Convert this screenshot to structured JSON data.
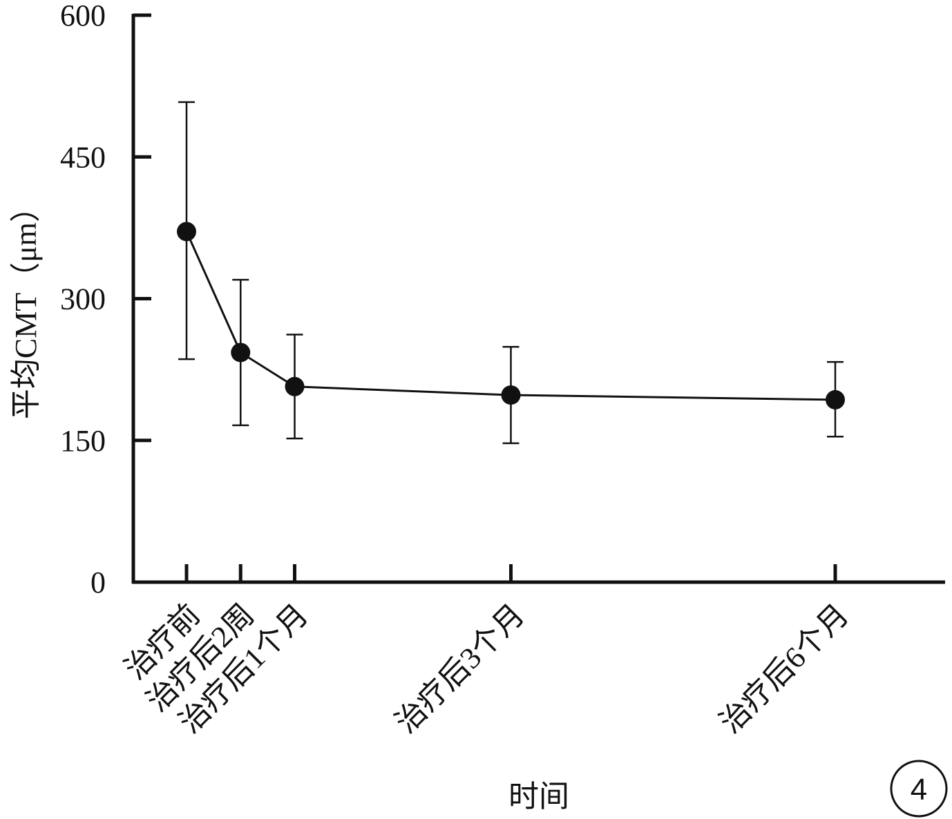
{
  "chart_data": {
    "type": "line",
    "title": "",
    "xlabel": "时间",
    "ylabel": "平均CMT（μm）",
    "ylim": [
      0,
      600
    ],
    "yticks": [
      0,
      150,
      300,
      450,
      600
    ],
    "x_unit": "months",
    "categories": [
      "治疗前",
      "治疗后2周",
      "治疗后1个月",
      "治疗后3个月",
      "治疗后6个月"
    ],
    "x": [
      0,
      0.5,
      1,
      3,
      6
    ],
    "series": [
      {
        "values": [
          371,
          243,
          207,
          198,
          193
        ],
        "error_upper": [
          508,
          320,
          262,
          249,
          233
        ],
        "error_lower": [
          236,
          166,
          152,
          147,
          154
        ]
      }
    ],
    "grid": false,
    "legend": "none",
    "colors": {
      "line": "#111111",
      "marker": "#111111",
      "axis": "#111111"
    },
    "panel_label": "4"
  }
}
